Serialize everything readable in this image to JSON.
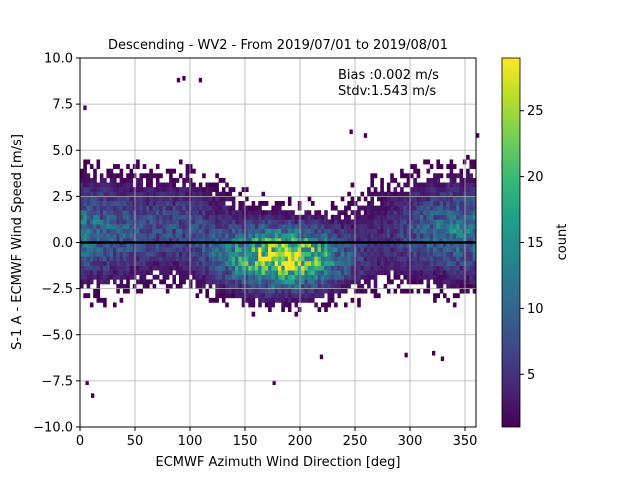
{
  "chart_data": {
    "type": "heatmap",
    "title": "Descending - WV2 - From 2019/07/01 to 2019/08/01",
    "xlabel": "ECMWF Azimuth Wind Direction [deg]",
    "ylabel": "S-1 A - ECMWF Wind Speed [m/s]",
    "xlim": [
      0,
      360
    ],
    "ylim": [
      -10,
      10
    ],
    "x_ticks": [
      "0",
      "50",
      "100",
      "150",
      "200",
      "250",
      "300",
      "350"
    ],
    "x_tick_values": [
      0,
      50,
      100,
      150,
      200,
      250,
      300,
      350
    ],
    "y_ticks": [
      "−10.0",
      "−7.5",
      "−5.0",
      "−2.5",
      "0.0",
      "2.5",
      "5.0",
      "7.5",
      "10.0"
    ],
    "y_tick_values": [
      -10,
      -7.5,
      -5,
      -2.5,
      0,
      2.5,
      5,
      7.5,
      10
    ],
    "grid": true,
    "zero_line": 0,
    "colormap": "viridis",
    "colorbar": {
      "label": "count",
      "range": [
        1,
        29
      ],
      "ticks": [
        "5",
        "10",
        "15",
        "20",
        "25"
      ],
      "tick_values": [
        5,
        10,
        15,
        20,
        25
      ]
    },
    "bin_size": {
      "x": 3,
      "y": 0.25
    },
    "annotations": [
      "Bias :0.002 m/s",
      "Stdv:1.543 m/s"
    ],
    "density_model": {
      "description_components": [
        {
          "center_deg": 185,
          "spread_deg": 38,
          "center_speed": -0.8,
          "spread_speed": 1.1,
          "peak_count": 26
        },
        {
          "center_deg": 20,
          "spread_deg": 45,
          "center_speed": 0.6,
          "spread_speed": 1.6,
          "peak_count": 7
        },
        {
          "center_deg": 330,
          "spread_deg": 45,
          "center_speed": 0.6,
          "spread_speed": 1.6,
          "peak_count": 7
        },
        {
          "center_deg": 100,
          "spread_deg": 30,
          "center_speed": 1.0,
          "spread_speed": 1.4,
          "peak_count": 5
        }
      ]
    },
    "outliers": [
      [
        88,
        8.8
      ],
      [
        93,
        8.9
      ],
      [
        108,
        8.8
      ],
      [
        3,
        7.3
      ],
      [
        5,
        -7.6
      ],
      [
        10,
        -8.3
      ],
      [
        175,
        -7.6
      ],
      [
        218,
        -6.2
      ],
      [
        295,
        -6.1
      ],
      [
        320,
        -6.0
      ],
      [
        328,
        -6.3
      ],
      [
        245,
        6.0
      ],
      [
        258,
        5.8
      ],
      [
        360,
        5.8
      ]
    ]
  }
}
